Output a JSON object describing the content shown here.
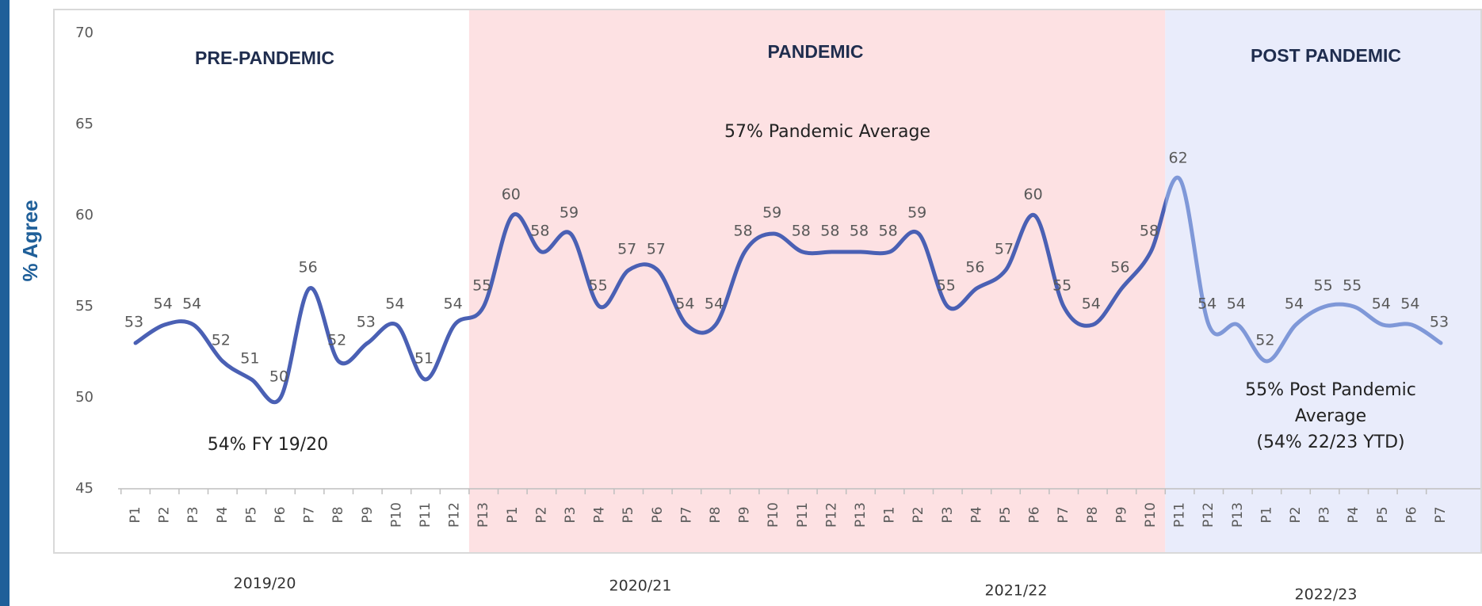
{
  "chart_data": {
    "type": "line",
    "y_label": "% Agree",
    "categories": [
      "P1",
      "P2",
      "P3",
      "P4",
      "P5",
      "P6",
      "P7",
      "P8",
      "P9",
      "P10",
      "P11",
      "P12",
      "P13",
      "P1",
      "P2",
      "P3",
      "P4",
      "P5",
      "P6",
      "P7",
      "P8",
      "P9",
      "P10",
      "P11",
      "P12",
      "P13",
      "P1",
      "P2",
      "P3",
      "P4",
      "P5",
      "P6",
      "P7",
      "P8",
      "P9",
      "P10",
      "P11",
      "P12",
      "P13",
      "P1",
      "P2",
      "P3",
      "P4",
      "P5",
      "P6",
      "P7"
    ],
    "values": [
      53,
      54,
      54,
      52,
      51,
      50,
      56,
      52,
      53,
      54,
      51,
      54,
      55,
      60,
      58,
      59,
      55,
      57,
      57,
      54,
      54,
      58,
      59,
      58,
      58,
      58,
      58,
      59,
      55,
      56,
      57,
      60,
      55,
      54,
      56,
      58,
      62,
      54,
      54,
      52,
      54,
      55,
      55,
      54,
      54,
      53
    ],
    "color": "#4a60b4",
    "post_color": "#7f98d8",
    "ylim": [
      45,
      70
    ],
    "yticks": [
      45,
      50,
      55,
      60,
      65,
      70
    ],
    "years": [
      "2019/20",
      "2020/21",
      "2021/22",
      "2022/23"
    ],
    "regions": [
      "PRE-PANDEMIC",
      "PANDEMIC",
      "POST PANDEMIC"
    ],
    "region_colors": [
      "#ffffff",
      "#fde1e3",
      "#e9ecfb"
    ],
    "annotations": {
      "pre": [
        "54% FY 19/20"
      ],
      "pandemic": [
        "57% Pandemic Average"
      ],
      "post": [
        "55% Post Pandemic",
        "Average",
        "(54% 22/23 YTD)"
      ]
    }
  }
}
